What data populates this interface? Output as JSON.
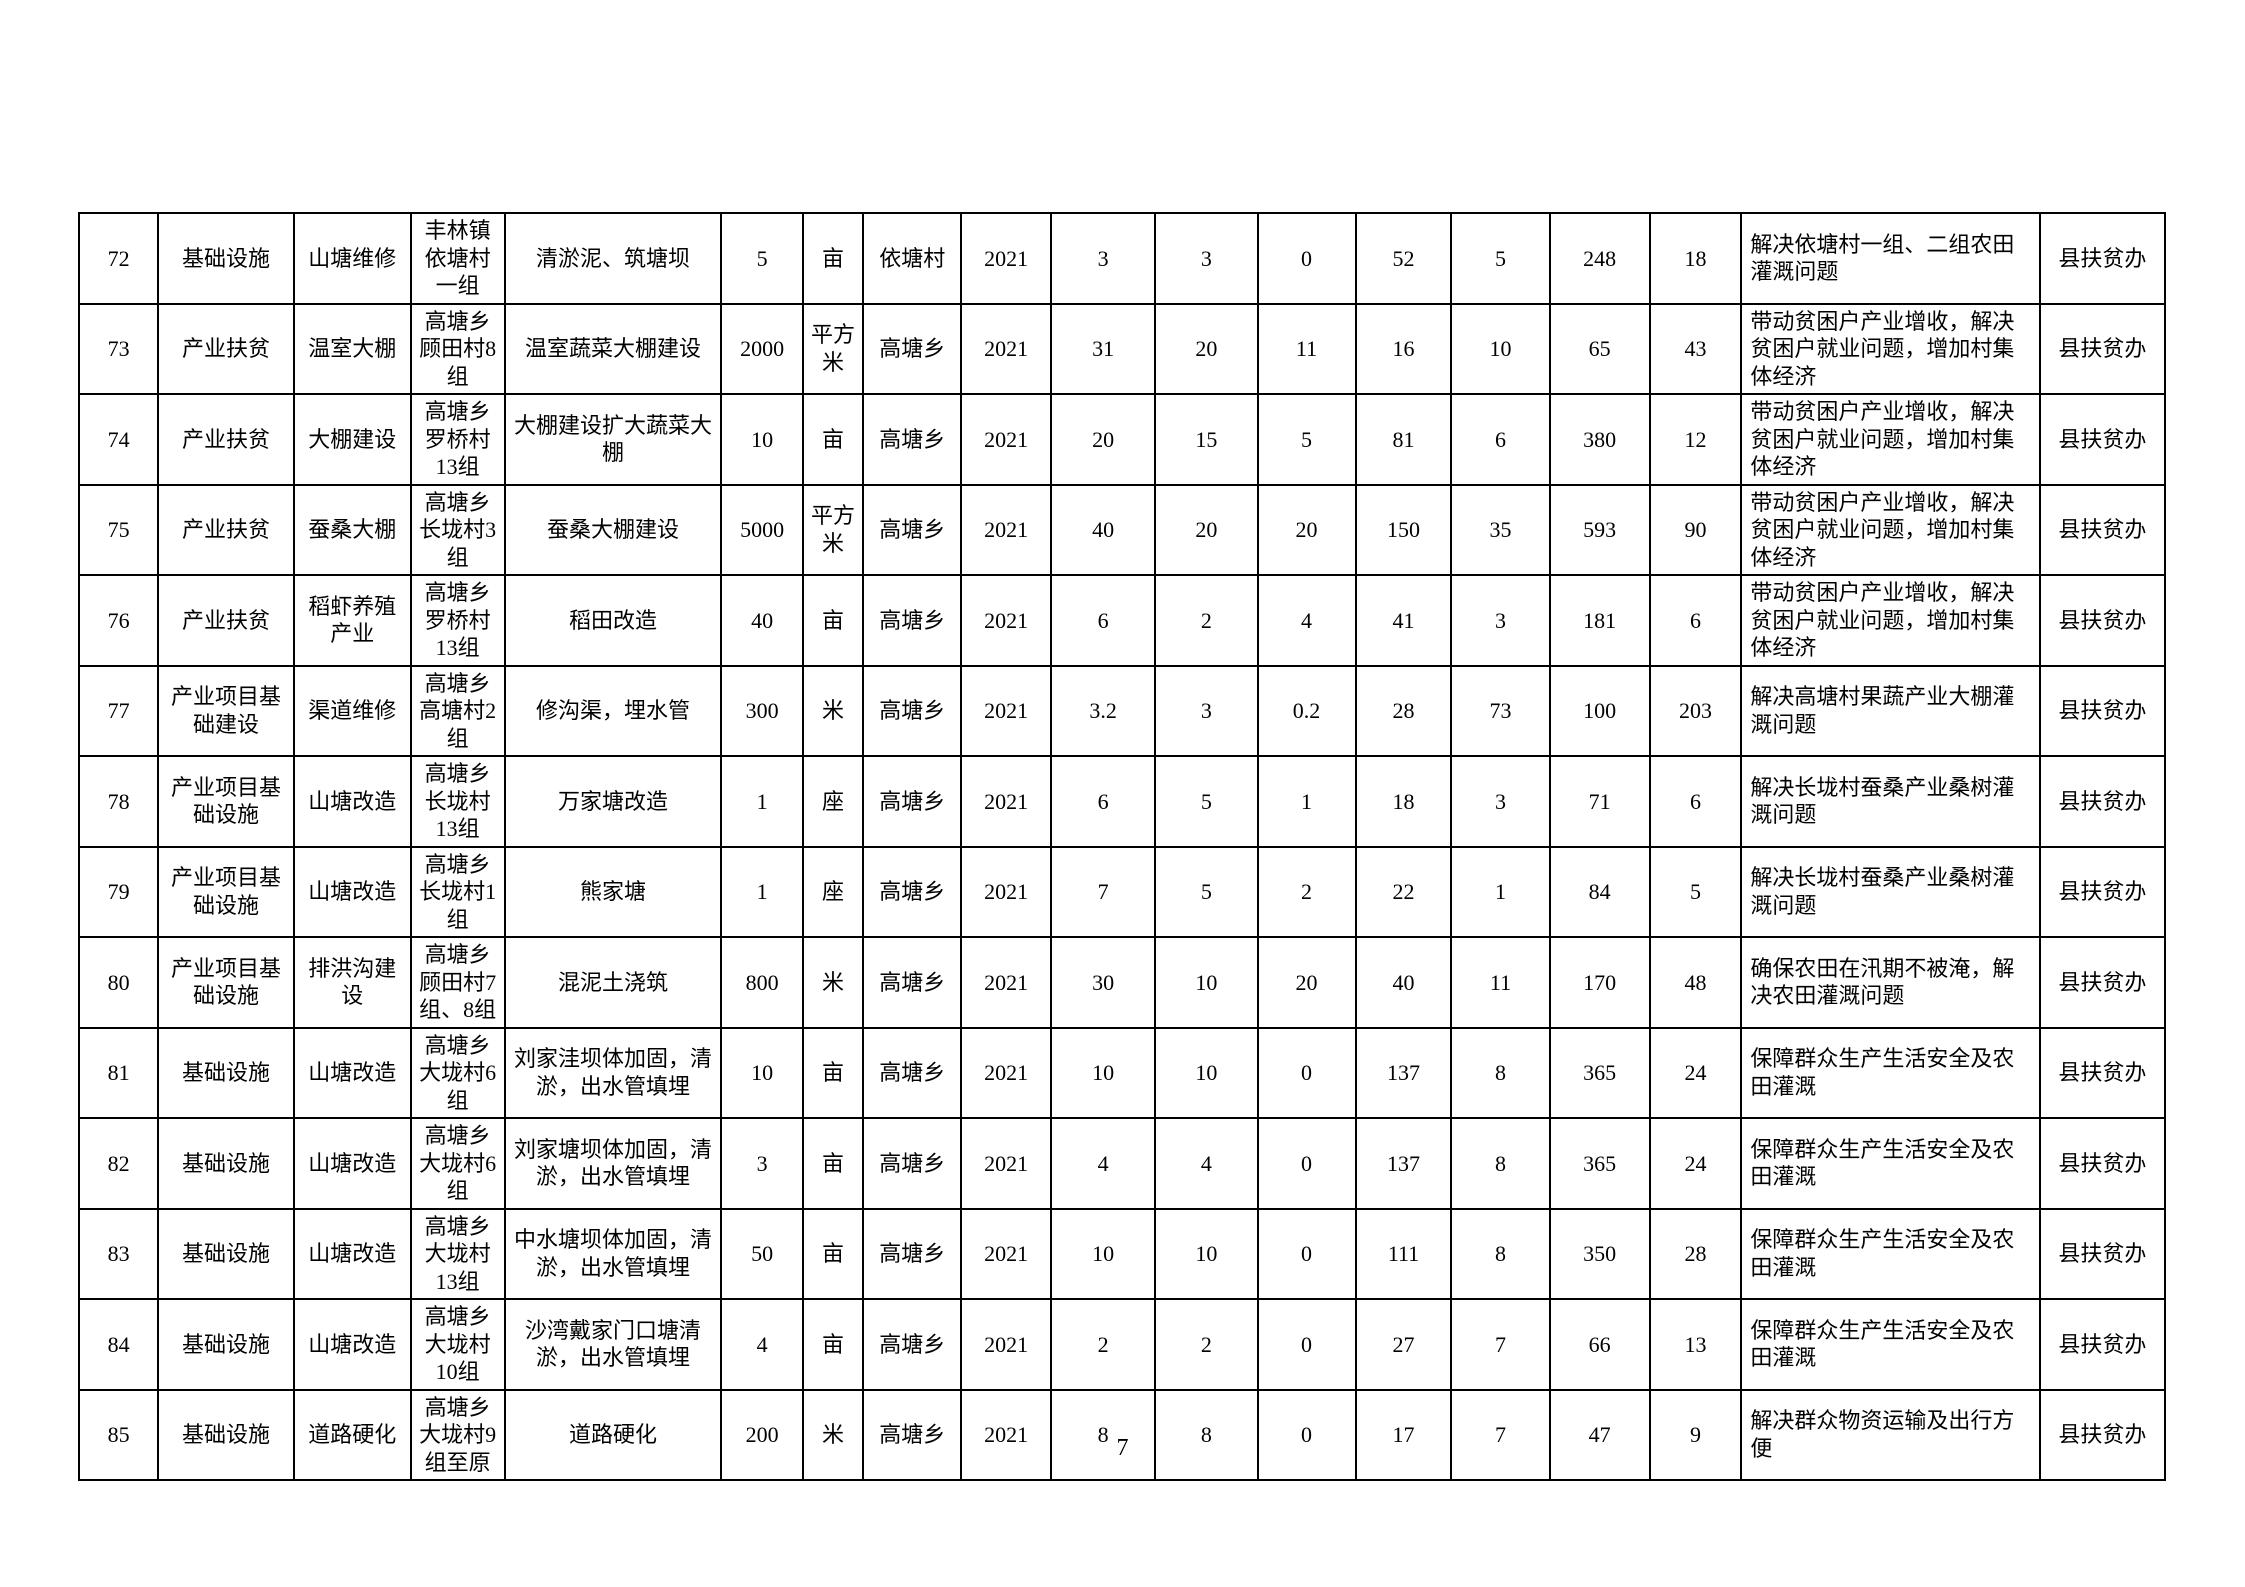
{
  "page": {
    "number": "7"
  },
  "table": {
    "rows": [
      [
        "72",
        "基础设施",
        "山塘维修",
        "丰林镇依塘村一组",
        "清淤泥、筑塘坝",
        "5",
        "亩",
        "依塘村",
        "2021",
        "3",
        "3",
        "0",
        "52",
        "5",
        "248",
        "18",
        "解决依塘村一组、二组农田灌溉问题",
        "县扶贫办"
      ],
      [
        "73",
        "产业扶贫",
        "温室大棚",
        "高塘乡顾田村8组",
        "温室蔬菜大棚建设",
        "2000",
        "平方米",
        "高塘乡",
        "2021",
        "31",
        "20",
        "11",
        "16",
        "10",
        "65",
        "43",
        "带动贫困户产业增收，解决贫困户就业问题，增加村集体经济",
        "县扶贫办"
      ],
      [
        "74",
        "产业扶贫",
        "大棚建设",
        "高塘乡罗桥村13组",
        "大棚建设扩大蔬菜大棚",
        "10",
        "亩",
        "高塘乡",
        "2021",
        "20",
        "15",
        "5",
        "81",
        "6",
        "380",
        "12",
        "带动贫困户产业增收，解决贫困户就业问题，增加村集体经济",
        "县扶贫办"
      ],
      [
        "75",
        "产业扶贫",
        "蚕桑大棚",
        "高塘乡长垅村3组",
        "蚕桑大棚建设",
        "5000",
        "平方米",
        "高塘乡",
        "2021",
        "40",
        "20",
        "20",
        "150",
        "35",
        "593",
        "90",
        "带动贫困户产业增收，解决贫困户就业问题，增加村集体经济",
        "县扶贫办"
      ],
      [
        "76",
        "产业扶贫",
        "稻虾养殖产业",
        "高塘乡罗桥村13组",
        "稻田改造",
        "40",
        "亩",
        "高塘乡",
        "2021",
        "6",
        "2",
        "4",
        "41",
        "3",
        "181",
        "6",
        "带动贫困户产业增收，解决贫困户就业问题，增加村集体经济",
        "县扶贫办"
      ],
      [
        "77",
        "产业项目基础建设",
        "渠道维修",
        "高塘乡高塘村2组",
        "修沟渠，埋水管",
        "300",
        "米",
        "高塘乡",
        "2021",
        "3.2",
        "3",
        "0.2",
        "28",
        "73",
        "100",
        "203",
        "解决高塘村果蔬产业大棚灌溉问题",
        "县扶贫办"
      ],
      [
        "78",
        "产业项目基础设施",
        "山塘改造",
        "高塘乡长垅村13组",
        "万家塘改造",
        "1",
        "座",
        "高塘乡",
        "2021",
        "6",
        "5",
        "1",
        "18",
        "3",
        "71",
        "6",
        "解决长垅村蚕桑产业桑树灌溉问题",
        "县扶贫办"
      ],
      [
        "79",
        "产业项目基础设施",
        "山塘改造",
        "高塘乡长垅村1组",
        "熊家塘",
        "1",
        "座",
        "高塘乡",
        "2021",
        "7",
        "5",
        "2",
        "22",
        "1",
        "84",
        "5",
        "解决长垅村蚕桑产业桑树灌溉问题",
        "县扶贫办"
      ],
      [
        "80",
        "产业项目基础设施",
        "排洪沟建设",
        "高塘乡顾田村7组、8组",
        "混泥土浇筑",
        "800",
        "米",
        "高塘乡",
        "2021",
        "30",
        "10",
        "20",
        "40",
        "11",
        "170",
        "48",
        "确保农田在汛期不被淹，解决农田灌溉问题",
        "县扶贫办"
      ],
      [
        "81",
        "基础设施",
        "山塘改造",
        "高塘乡大垅村6组",
        "刘家洼坝体加固，清淤，出水管填埋",
        "10",
        "亩",
        "高塘乡",
        "2021",
        "10",
        "10",
        "0",
        "137",
        "8",
        "365",
        "24",
        "保障群众生产生活安全及农田灌溉",
        "县扶贫办"
      ],
      [
        "82",
        "基础设施",
        "山塘改造",
        "高塘乡大垅村6组",
        "刘家塘坝体加固，清淤，出水管填埋",
        "3",
        "亩",
        "高塘乡",
        "2021",
        "4",
        "4",
        "0",
        "137",
        "8",
        "365",
        "24",
        "保障群众生产生活安全及农田灌溉",
        "县扶贫办"
      ],
      [
        "83",
        "基础设施",
        "山塘改造",
        "高塘乡大垅村13组",
        "中水塘坝体加固，清淤，出水管填埋",
        "50",
        "亩",
        "高塘乡",
        "2021",
        "10",
        "10",
        "0",
        "111",
        "8",
        "350",
        "28",
        "保障群众生产生活安全及农田灌溉",
        "县扶贫办"
      ],
      [
        "84",
        "基础设施",
        "山塘改造",
        "高塘乡大垅村10组",
        "沙湾戴家门口塘清淤，出水管填埋",
        "4",
        "亩",
        "高塘乡",
        "2021",
        "2",
        "2",
        "0",
        "27",
        "7",
        "66",
        "13",
        "保障群众生产生活安全及农田灌溉",
        "县扶贫办"
      ],
      [
        "85",
        "基础设施",
        "道路硬化",
        "高塘乡大垅村9组至原",
        "道路硬化",
        "200",
        "米",
        "高塘乡",
        "2021",
        "8",
        "8",
        "0",
        "17",
        "7",
        "47",
        "9",
        "解决群众物资运输及出行方便",
        "县扶贫办"
      ]
    ]
  }
}
